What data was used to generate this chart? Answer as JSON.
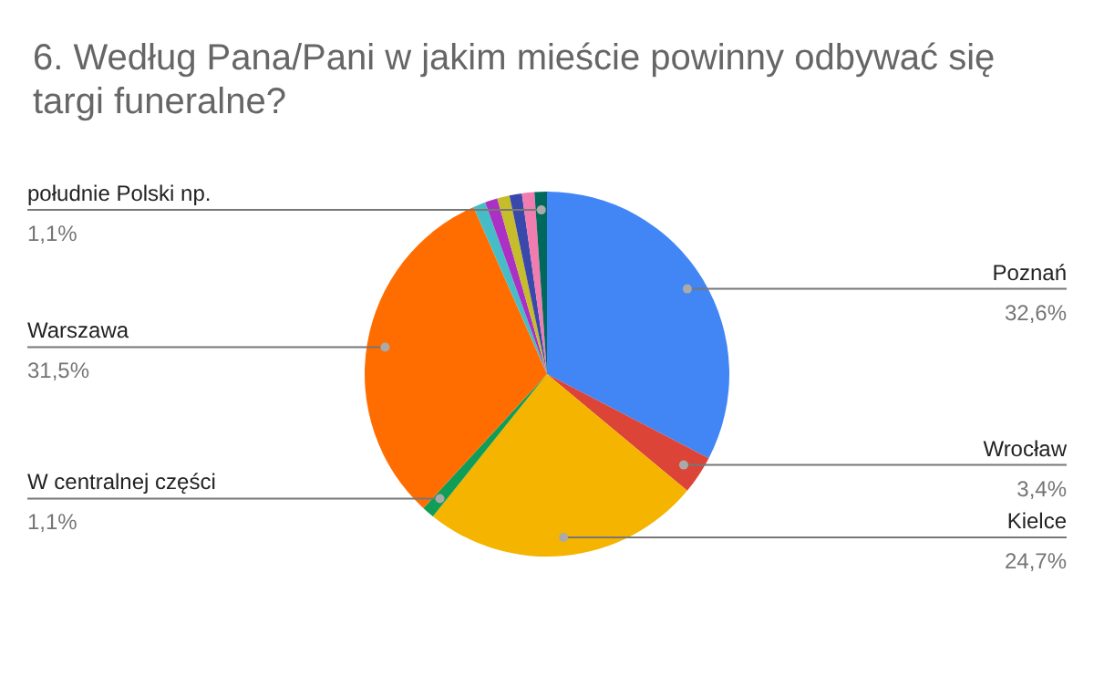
{
  "chart_data": {
    "type": "pie",
    "title": "6. Według Pana/Pani w jakim mieście powinny odbywać się targi funeralne?",
    "categories": [
      "Poznań",
      "Wrocław",
      "Kielce",
      "W centralnej części",
      "Warszawa",
      null,
      null,
      null,
      null,
      null,
      "południe Polski np."
    ],
    "values": [
      32.6,
      3.4,
      24.7,
      1.1,
      31.5,
      1.1,
      1.1,
      1.1,
      1.1,
      1.1,
      1.1
    ],
    "value_labels": [
      "32,6%",
      "3,4%",
      "24,7%",
      "1,1%",
      "31,5%",
      null,
      null,
      null,
      null,
      null,
      "1,1%"
    ],
    "colors": [
      "#4285f4",
      "#db4437",
      "#f4b400",
      "#0f9d58",
      "#ff6d01",
      "#46bdc6",
      "#ab30c4",
      "#c5bd2a",
      "#3949ab",
      "#f07cb0",
      "#00695c"
    ],
    "legend": false
  }
}
